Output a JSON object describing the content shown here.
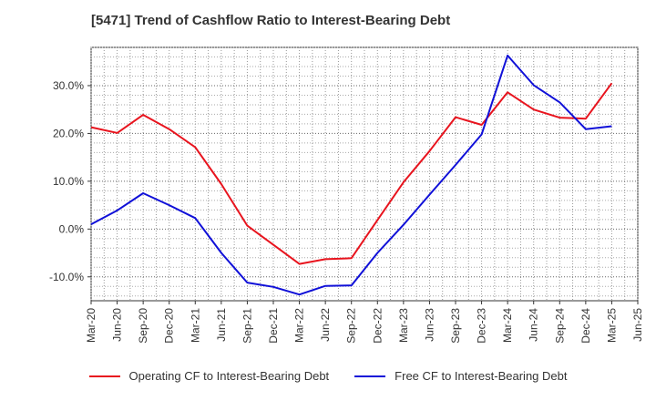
{
  "chart_data": {
    "type": "line",
    "title": "[5471]  Trend of Cashflow Ratio to Interest-Bearing Debt",
    "xlabel": "",
    "ylabel": "",
    "x": [
      "Mar-20",
      "Jun-20",
      "Sep-20",
      "Dec-20",
      "Mar-21",
      "Jun-21",
      "Sep-21",
      "Dec-21",
      "Mar-22",
      "Jun-22",
      "Sep-22",
      "Dec-22",
      "Mar-23",
      "Jun-23",
      "Sep-23",
      "Dec-23",
      "Mar-24",
      "Jun-24",
      "Sep-24",
      "Dec-24",
      "Mar-25",
      "Jun-25"
    ],
    "ylim": [
      -15,
      38
    ],
    "yticks": [
      -10,
      0,
      10,
      20,
      30
    ],
    "ytick_labels": [
      "-10.0%",
      "0.0%",
      "10.0%",
      "20.0%",
      "30.0%"
    ],
    "grid": true,
    "legend_position": "bottom",
    "series": [
      {
        "name": "Operating CF to Interest-Bearing Debt",
        "color": "#e8141e",
        "values": [
          21.3,
          20.1,
          23.9,
          20.9,
          17.1,
          9.4,
          0.7,
          -3.3,
          -7.3,
          -6.3,
          -6.1,
          1.9,
          9.8,
          16.3,
          23.4,
          21.8,
          28.6,
          25.0,
          23.3,
          23.1,
          30.5,
          null
        ]
      },
      {
        "name": "Free CF to Interest-Bearing Debt",
        "color": "#1010d8",
        "values": [
          1.0,
          3.9,
          7.5,
          5.0,
          2.3,
          -5.0,
          -11.2,
          -12.1,
          -13.7,
          -11.9,
          -11.8,
          -5.0,
          0.9,
          7.2,
          13.4,
          19.8,
          36.3,
          30.1,
          26.5,
          20.9,
          21.5,
          null
        ]
      }
    ]
  }
}
